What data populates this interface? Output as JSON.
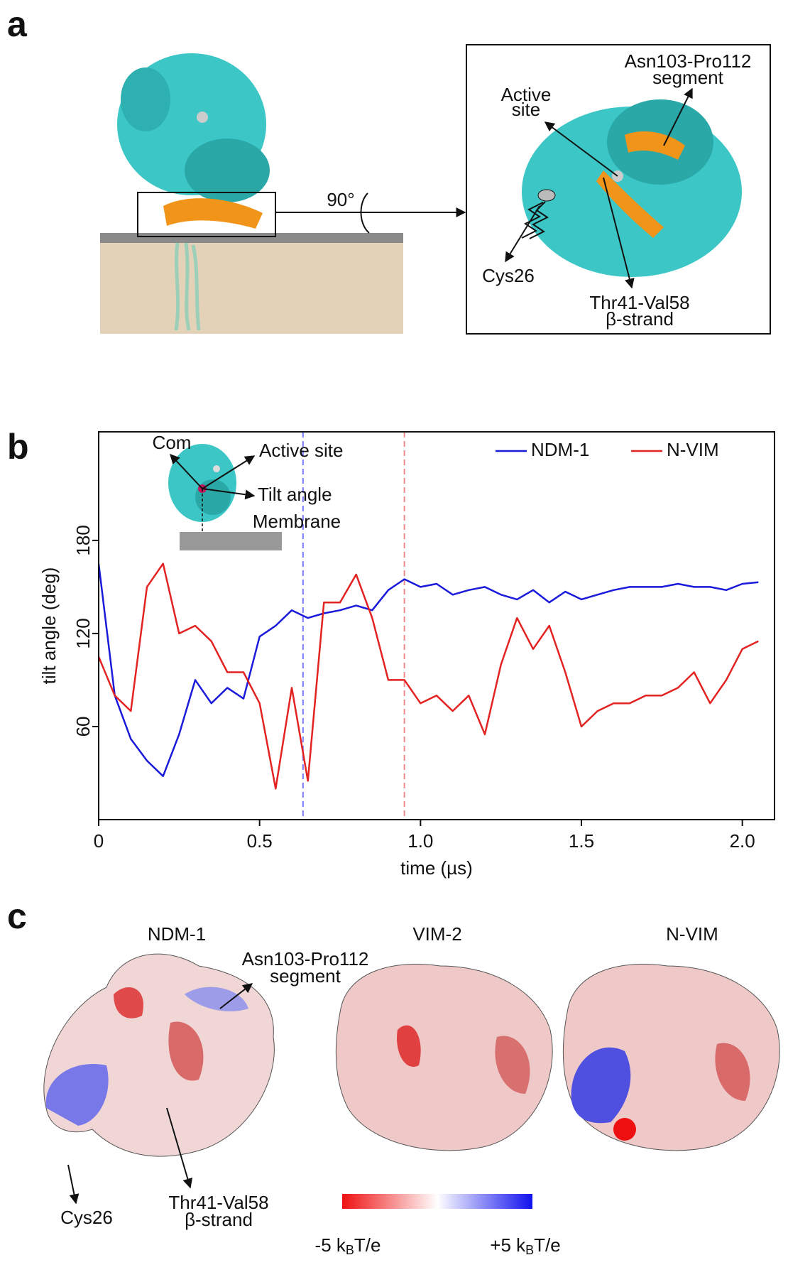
{
  "figure": {
    "panel_labels": [
      "a",
      "b",
      "c"
    ]
  },
  "panel_a": {
    "rotation": "90°",
    "active_site": [
      "Active",
      "site"
    ],
    "segment": [
      "Asn103-Pro112",
      "segment"
    ],
    "cys": "Cys26",
    "strand": [
      "Thr41-Val58",
      "β-strand"
    ]
  },
  "chart_data": {
    "type": "line",
    "x_label": "time (µs)",
    "y_label": "tilt angle (deg)",
    "x": [
      0,
      0.05,
      0.1,
      0.15,
      0.2,
      0.25,
      0.3,
      0.35,
      0.4,
      0.45,
      0.5,
      0.55,
      0.6,
      0.65,
      0.7,
      0.75,
      0.8,
      0.85,
      0.9,
      0.95,
      1.0,
      1.05,
      1.1,
      1.15,
      1.2,
      1.25,
      1.3,
      1.35,
      1.4,
      1.45,
      1.5,
      1.55,
      1.6,
      1.65,
      1.7,
      1.75,
      1.8,
      1.85,
      1.9,
      1.95,
      2.0,
      2.05
    ],
    "series": [
      {
        "name": "NDM-1",
        "color": "#1a1adb",
        "values": [
          165,
          80,
          52,
          38,
          28,
          55,
          90,
          75,
          85,
          78,
          118,
          125,
          135,
          130,
          133,
          135,
          138,
          135,
          148,
          155,
          150,
          152,
          145,
          148,
          150,
          145,
          142,
          148,
          140,
          147,
          142,
          145,
          148,
          150,
          150,
          150,
          152,
          150,
          150,
          148,
          152,
          153
        ]
      },
      {
        "name": "N-VIM",
        "color": "#e32222",
        "values": [
          105,
          80,
          70,
          150,
          165,
          120,
          125,
          115,
          95,
          95,
          75,
          20,
          85,
          25,
          140,
          140,
          158,
          130,
          90,
          90,
          75,
          80,
          70,
          80,
          55,
          100,
          130,
          110,
          125,
          95,
          60,
          70,
          75,
          75,
          80,
          80,
          85,
          95,
          75,
          90,
          110,
          115
        ]
      }
    ],
    "xlim": [
      0,
      2.1
    ],
    "ylim": [
      0,
      250
    ],
    "xticks": [
      0,
      0.5,
      {
        "value": 1.0,
        "label": "1.0"
      },
      1.5,
      {
        "value": 2.0,
        "label": "2.0"
      }
    ],
    "yticks": [
      60,
      120,
      180
    ],
    "legend": "upper right",
    "markers": [
      {
        "x": 0.635,
        "color": "#7a7aff"
      },
      {
        "x": 0.95,
        "color": "#f08a8a"
      }
    ],
    "inset_labels": [
      "Com",
      "Active site",
      "Tilt angle",
      "Membrane"
    ]
  },
  "panel_c": {
    "titles": [
      "NDM-1",
      "VIM-2",
      "N-VIM"
    ],
    "segment": [
      "Asn103-Pro112",
      "segment"
    ],
    "cys": "Cys26",
    "strand": [
      "Thr41-Val58",
      "β-strand"
    ],
    "colorbar": {
      "min": {
        "prefix": "-5 k",
        "sub": "B",
        "suffix": "T/e"
      },
      "max": {
        "prefix": "+5 k",
        "sub": "B",
        "suffix": "T/e"
      },
      "colors": [
        "#ee1111",
        "#ffffff",
        "#1111ee"
      ]
    }
  }
}
